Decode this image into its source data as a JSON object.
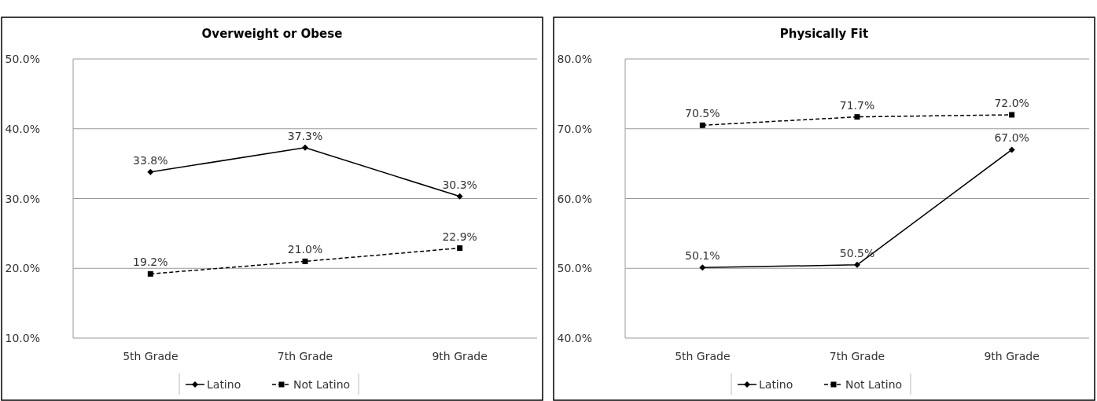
{
  "chart_data": [
    {
      "type": "line",
      "title": "Overweight or Obese",
      "categories": [
        "5th Grade",
        "7th Grade",
        "9th Grade"
      ],
      "ylim": [
        10,
        50
      ],
      "yticks": [
        {
          "value": 10,
          "label": "10.0%"
        },
        {
          "value": 20,
          "label": "20.0%"
        },
        {
          "value": 30,
          "label": "30.0%"
        },
        {
          "value": 40,
          "label": "40.0%"
        },
        {
          "value": 50,
          "label": "50.0%"
        }
      ],
      "grid": "y",
      "legend": "bottom",
      "data_labels": false,
      "series": [
        {
          "name": "Latino",
          "color": "#000000",
          "values": [
            33.8,
            37.3,
            30.3
          ],
          "value_labels": [
            "33.8%",
            "37.3%",
            "30.3%"
          ],
          "marker": "diamond",
          "line_style": "solid"
        },
        {
          "name": "Not Latino",
          "color": "#000000",
          "values": [
            19.2,
            21.0,
            22.9
          ],
          "value_labels": [
            "19.2%",
            "21.0%",
            "22.9%"
          ],
          "marker": "square",
          "line_style": "dashed"
        }
      ]
    },
    {
      "type": "line",
      "title": "Physically Fit",
      "categories": [
        "5th Grade",
        "7th Grade",
        "9th Grade"
      ],
      "ylim": [
        40,
        80
      ],
      "yticks": [
        {
          "value": 40,
          "label": "40.0%"
        },
        {
          "value": 50,
          "label": "50.0%"
        },
        {
          "value": 60,
          "label": "60.0%"
        },
        {
          "value": 70,
          "label": "70.0%"
        },
        {
          "value": 80,
          "label": "80.0%"
        }
      ],
      "grid": "y",
      "legend": "bottom",
      "data_labels": false,
      "series": [
        {
          "name": "Latino",
          "color": "#000000",
          "values": [
            50.1,
            50.5,
            67.0
          ],
          "value_labels": [
            "50.1%",
            "50.5%",
            "67.0%"
          ],
          "marker": "diamond",
          "line_style": "solid"
        },
        {
          "name": "Not Latino",
          "color": "#000000",
          "values": [
            70.5,
            71.7,
            72.0
          ],
          "value_labels": [
            "70.5%",
            "71.7%",
            "72.0%"
          ],
          "marker": "square",
          "line_style": "dashed"
        }
      ]
    }
  ]
}
